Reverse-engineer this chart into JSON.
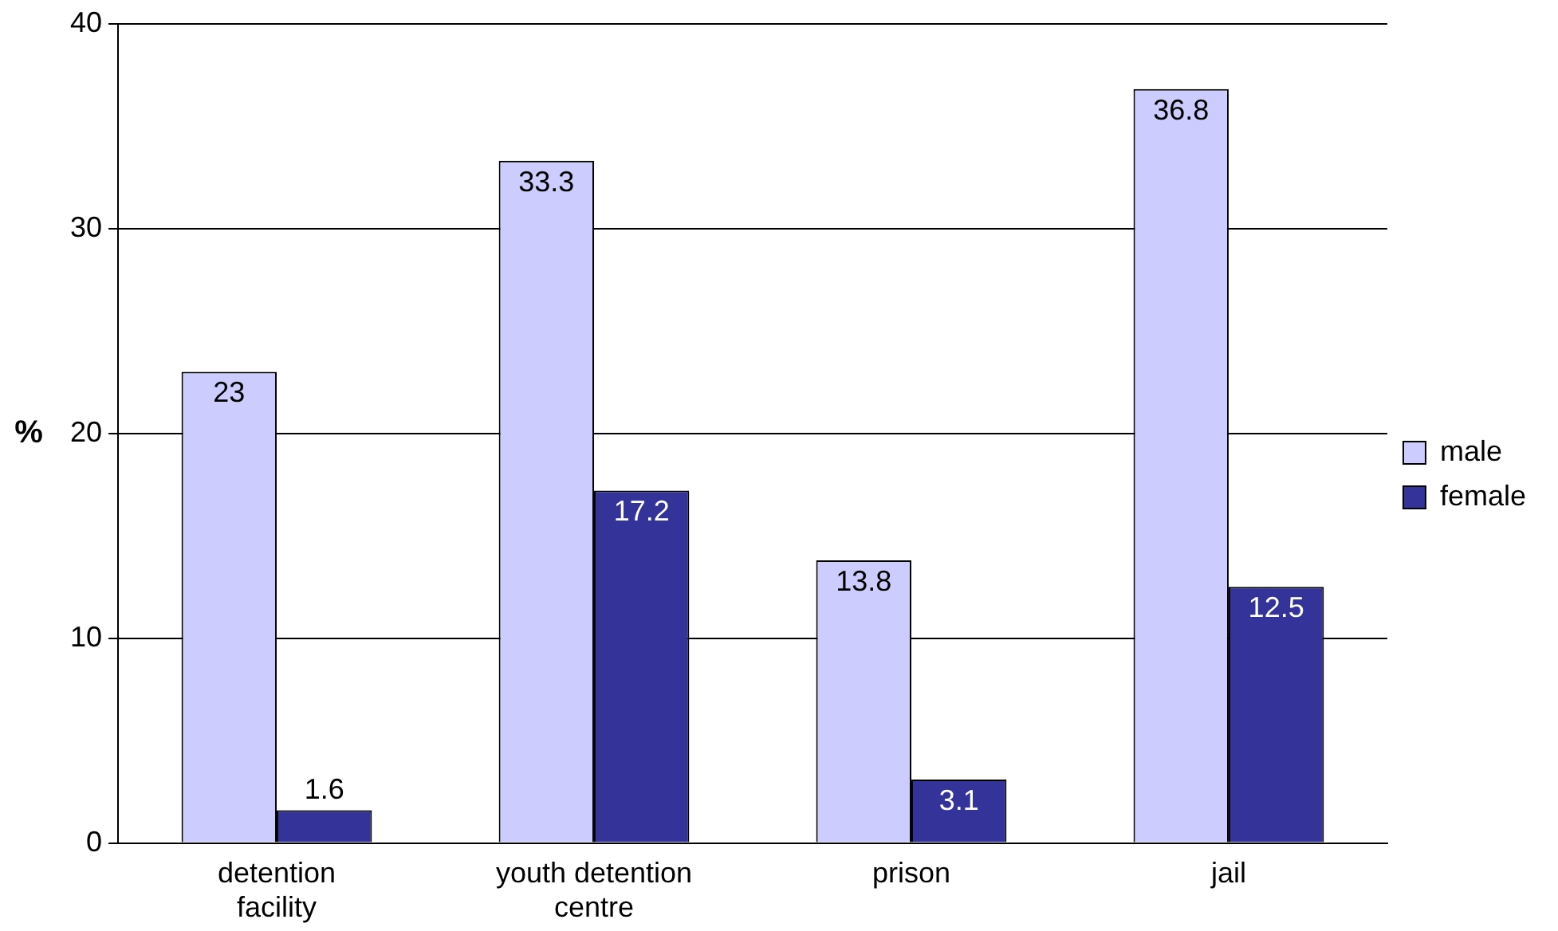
{
  "chart_data": {
    "type": "bar",
    "ylabel": "%",
    "categories": [
      "detention facility",
      "youth detention centre",
      "prison",
      "jail"
    ],
    "series": [
      {
        "name": "male",
        "color": "#ccccff",
        "values": [
          23,
          33.3,
          13.8,
          36.8
        ]
      },
      {
        "name": "female",
        "color": "#333399",
        "values": [
          1.6,
          17.2,
          3.1,
          12.5
        ]
      }
    ],
    "ylim": [
      0,
      40
    ],
    "yticks": [
      0,
      10,
      20,
      30,
      40
    ],
    "grid": "y",
    "legend": "right",
    "data_labels": true
  }
}
